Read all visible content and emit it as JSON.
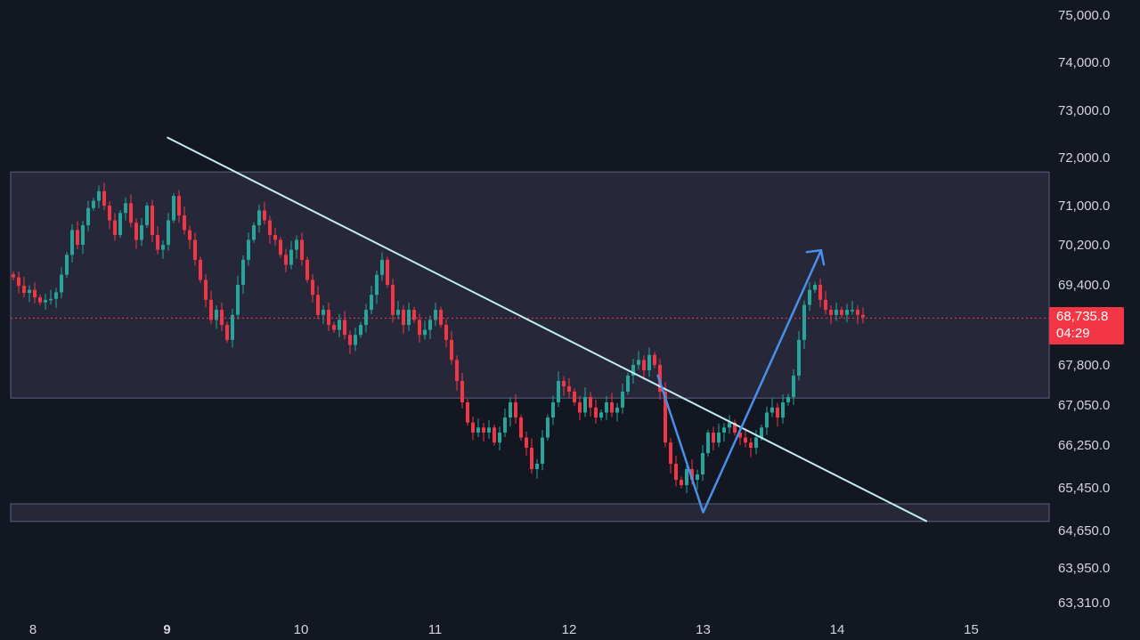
{
  "chart_data": {
    "type": "candlestick",
    "y_ticks": [
      "75,000.0",
      "74,000.0",
      "73,000.0",
      "72,000.0",
      "71,000.0",
      "70,200.0",
      "69,400.0",
      "67,800.0",
      "67,050.0",
      "66,250.0",
      "65,450.0",
      "64,650.0",
      "63,950.0",
      "63,310.0"
    ],
    "x_ticks": [
      "8",
      "9",
      "10",
      "11",
      "12",
      "13",
      "14",
      "15"
    ],
    "bold_x_tick": "9",
    "last_price": "68,735.8",
    "countdown": "04:29",
    "colors": {
      "up": "#26a69a",
      "down": "#f23645",
      "background": "#131722",
      "zone": "#262839",
      "trendline": "#bfeff2",
      "arrow": "#4a8fe8",
      "axis_text": "#d1d4dc"
    },
    "zones": [
      {
        "name": "upper-range",
        "top": 71700,
        "bottom": 67180
      },
      {
        "name": "support",
        "top": 65150,
        "bottom": 64820
      }
    ],
    "trendline": {
      "from": {
        "day": 9.0,
        "price": 72430
      },
      "to": {
        "day": 14.67,
        "price": 64820
      }
    },
    "arrow_path": [
      {
        "day": 12.66,
        "price": 67620
      },
      {
        "day": 13.0,
        "price": 64990
      },
      {
        "day": 13.88,
        "price": 70090
      }
    ],
    "price_close_series": [
      69550,
      69380,
      69240,
      69300,
      69150,
      69050,
      69100,
      69120,
      69250,
      69600,
      70000,
      70500,
      70200,
      70600,
      70950,
      71100,
      71300,
      71000,
      70700,
      70400,
      70850,
      71050,
      70650,
      70300,
      70600,
      71000,
      70400,
      70100,
      70200,
      70700,
      71200,
      70800,
      70500,
      70300,
      69900,
      69500,
      69100,
      68700,
      68900,
      68600,
      68300,
      68800,
      69400,
      69900,
      70300,
      70600,
      70900,
      70700,
      70400,
      70300,
      70000,
      69800,
      70100,
      70300,
      69900,
      69500,
      69200,
      68800,
      68900,
      68600,
      68500,
      68700,
      68400,
      68200,
      68400,
      68600,
      68900,
      69200,
      69600,
      69900,
      69400,
      68800,
      68900,
      68600,
      68900,
      68700,
      68400,
      68500,
      68700,
      68900,
      68600,
      68300,
      67900,
      67500,
      67100,
      66700,
      66500,
      66600,
      66500,
      66600,
      66300,
      66500,
      66800,
      67100,
      66800,
      66400,
      66200,
      65800,
      65900,
      66400,
      66800,
      67100,
      67500,
      67400,
      67300,
      67100,
      66900,
      67200,
      67000,
      66800,
      66900,
      67100,
      66900,
      67000,
      67300,
      67600,
      67800,
      67900,
      67700,
      68000,
      67800,
      67300,
      66300,
      65900,
      65600,
      65500,
      65800,
      65600,
      65700,
      66100,
      66500,
      66300,
      66500,
      66600,
      66700,
      66500,
      66400,
      66300,
      66200,
      66400,
      66600,
      66900,
      67000,
      66800,
      67100,
      67200,
      67600,
      68300,
      69000,
      69300,
      69400,
      69100,
      68900,
      68800,
      68900,
      68800,
      68900,
      68900,
      68800,
      68750
    ]
  }
}
